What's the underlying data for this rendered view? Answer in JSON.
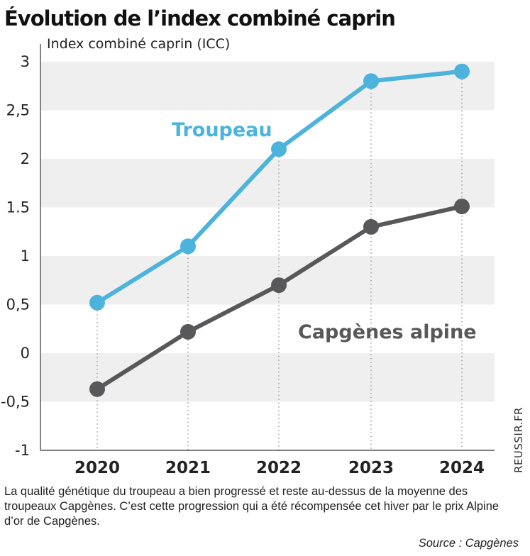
{
  "title": "Évolution de l’index combiné caprin",
  "caption": "La qualité génétique du troupeau a bien progressé et reste au-dessus de la moyenne des troupeaux Capgènes. C’est cette progression qui a été récompensée cet hiver par le prix Alpine d’or de Capgènes.",
  "source": "Source : Capgènes",
  "credit": "REUSSIR.FR",
  "chart_data": {
    "type": "line",
    "title": "Évolution de l’index combiné caprin",
    "ylabel": "Index combiné caprin (ICC)",
    "xlabel": "",
    "categories": [
      "2020",
      "2021",
      "2022",
      "2023",
      "2024"
    ],
    "ylim": [
      -1,
      3
    ],
    "yticks": [
      {
        "value": 3,
        "label": "3"
      },
      {
        "value": 2.5,
        "label": "2,5"
      },
      {
        "value": 2,
        "label": "2"
      },
      {
        "value": 1.5,
        "label": "1.5"
      },
      {
        "value": 1,
        "label": "1"
      },
      {
        "value": 0.5,
        "label": "0,5"
      },
      {
        "value": 0,
        "label": "0"
      },
      {
        "value": -0.5,
        "label": "-0,5"
      },
      {
        "value": -1,
        "label": "-1"
      }
    ],
    "grid": "alternating horizontal bands",
    "series": [
      {
        "name": "Troupeau",
        "color": "#4bb3dc",
        "values": [
          0.52,
          1.1,
          2.1,
          2.8,
          2.9
        ]
      },
      {
        "name": "Capgènes alpine",
        "color": "#58585a",
        "values": [
          -0.37,
          0.22,
          0.7,
          1.3,
          1.51
        ]
      }
    ]
  }
}
